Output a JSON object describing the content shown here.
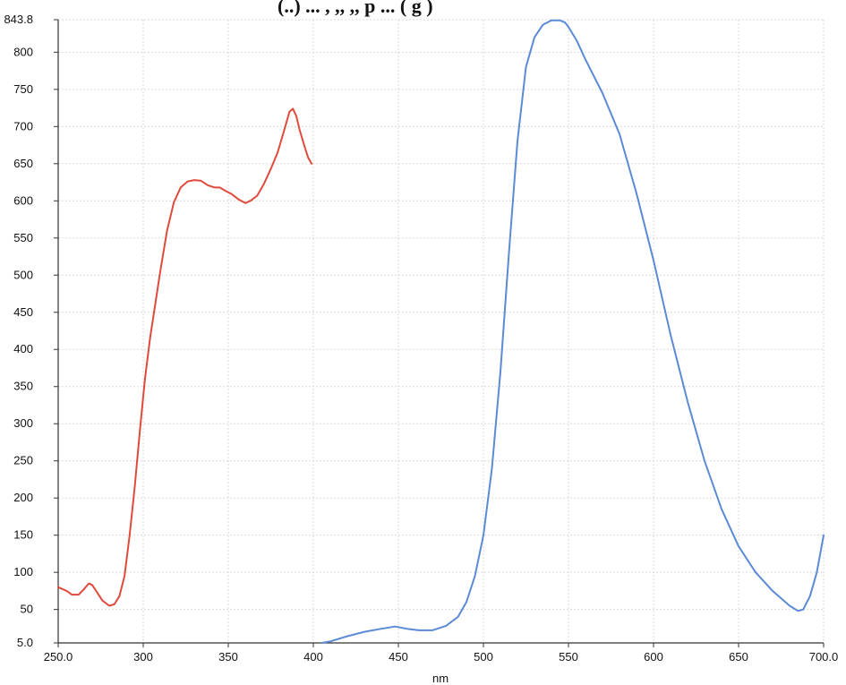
{
  "header_fragment": "(..) ... , ,, ,, p ... ( g )",
  "chart_data": {
    "type": "line",
    "title": "",
    "xlabel": "nm",
    "ylabel": "",
    "xlim": [
      250,
      700
    ],
    "ylim": [
      5,
      843.8
    ],
    "x_ticks": [
      250,
      300,
      350,
      400,
      450,
      500,
      550,
      600,
      650,
      700
    ],
    "x_tick_labels": [
      "250.0",
      "300",
      "350",
      "400",
      "450",
      "500",
      "550",
      "600",
      "650",
      "700.0"
    ],
    "y_ticks": [
      5,
      50,
      100,
      150,
      200,
      250,
      300,
      350,
      400,
      450,
      500,
      550,
      600,
      650,
      700,
      750,
      800,
      843.8
    ],
    "y_tick_labels": [
      "5.0",
      "50",
      "100",
      "150",
      "200",
      "250",
      "300",
      "350",
      "400",
      "450",
      "500",
      "550",
      "600",
      "650",
      "700",
      "750",
      "800",
      "843.8"
    ],
    "grid": true,
    "series": [
      {
        "color": "#e04a3c",
        "x": [
          250,
          255,
          258,
          262,
          265,
          268,
          270,
          272,
          276,
          280,
          283,
          286,
          289,
          292,
          295,
          298,
          301,
          304,
          307,
          310,
          314,
          318,
          322,
          326,
          330,
          334,
          338,
          342,
          345,
          348,
          352,
          356,
          360,
          363,
          367,
          371,
          375,
          379,
          383,
          386,
          388,
          390,
          392,
          395,
          397,
          399
        ],
        "y": [
          80,
          75,
          70,
          70,
          77,
          85,
          83,
          76,
          62,
          55,
          57,
          68,
          95,
          150,
          215,
          290,
          360,
          415,
          460,
          505,
          560,
          598,
          618,
          626,
          628,
          627,
          621,
          618,
          618,
          614,
          609,
          602,
          597,
          600,
          607,
          623,
          643,
          665,
          696,
          720,
          724,
          714,
          695,
          672,
          658,
          650
        ]
      },
      {
        "color": "#5b8ad6",
        "x": [
          405,
          410,
          420,
          430,
          440,
          448,
          455,
          462,
          470,
          478,
          485,
          490,
          495,
          500,
          505,
          510,
          515,
          520,
          525,
          530,
          535,
          540,
          545,
          548,
          550,
          555,
          560,
          570,
          580,
          590,
          600,
          610,
          620,
          630,
          640,
          650,
          660,
          670,
          680,
          685,
          688,
          692,
          696,
          700
        ],
        "y": [
          5,
          7,
          14,
          20,
          24,
          27,
          24,
          22,
          22,
          28,
          40,
          60,
          95,
          150,
          240,
          370,
          530,
          680,
          780,
          820,
          837,
          843,
          843,
          840,
          834,
          815,
          790,
          745,
          690,
          610,
          520,
          420,
          330,
          250,
          185,
          135,
          100,
          75,
          55,
          48,
          50,
          68,
          100,
          150
        ]
      }
    ]
  }
}
